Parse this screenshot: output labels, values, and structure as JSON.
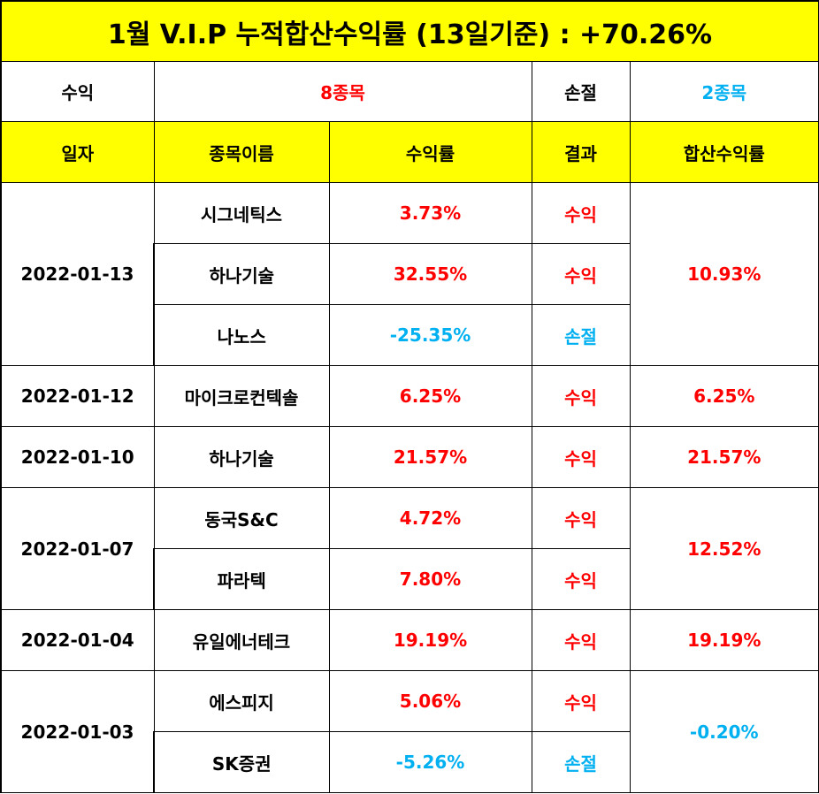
{
  "title": "1월 V.I.P 누적합산수익률 (13일기준) : +70.26%",
  "summary": {
    "profit_label": "수익",
    "profit_value": "8종목",
    "loss_label": "손절",
    "loss_value": "2종목"
  },
  "headers": {
    "date": "일자",
    "name": "종목이름",
    "rate": "수익률",
    "result": "결과",
    "total": "합산수익률"
  },
  "groups": [
    {
      "date": "2022-01-13",
      "total": "10.93%",
      "total_color": "#ff0000",
      "rows": [
        {
          "name": "시그네틱스",
          "rate": "3.73%",
          "result": "수익",
          "color": "#ff0000"
        },
        {
          "name": "하나기술",
          "rate": "32.55%",
          "result": "수익",
          "color": "#ff0000"
        },
        {
          "name": "나노스",
          "rate": "-25.35%",
          "result": "손절",
          "color": "#00b0f0"
        }
      ]
    },
    {
      "date": "2022-01-12",
      "total": "6.25%",
      "total_color": "#ff0000",
      "rows": [
        {
          "name": "마이크로컨텍솔",
          "rate": "6.25%",
          "result": "수익",
          "color": "#ff0000"
        }
      ]
    },
    {
      "date": "2022-01-10",
      "total": "21.57%",
      "total_color": "#ff0000",
      "rows": [
        {
          "name": "하나기술",
          "rate": "21.57%",
          "result": "수익",
          "color": "#ff0000"
        }
      ]
    },
    {
      "date": "2022-01-07",
      "total": "12.52%",
      "total_color": "#ff0000",
      "rows": [
        {
          "name": "동국S&C",
          "rate": "4.72%",
          "result": "수익",
          "color": "#ff0000"
        },
        {
          "name": "파라텍",
          "rate": "7.80%",
          "result": "수익",
          "color": "#ff0000"
        }
      ]
    },
    {
      "date": "2022-01-04",
      "total": "19.19%",
      "total_color": "#ff0000",
      "rows": [
        {
          "name": "유일에너테크",
          "rate": "19.19%",
          "result": "수익",
          "color": "#ff0000"
        }
      ]
    },
    {
      "date": "2022-01-03",
      "total": "-0.20%",
      "total_color": "#00b0f0",
      "rows": [
        {
          "name": "에스피지",
          "rate": "5.06%",
          "result": "수익",
          "color": "#ff0000"
        },
        {
          "name": "SK증권",
          "rate": "-5.26%",
          "result": "손절",
          "color": "#00b0f0"
        }
      ]
    }
  ]
}
